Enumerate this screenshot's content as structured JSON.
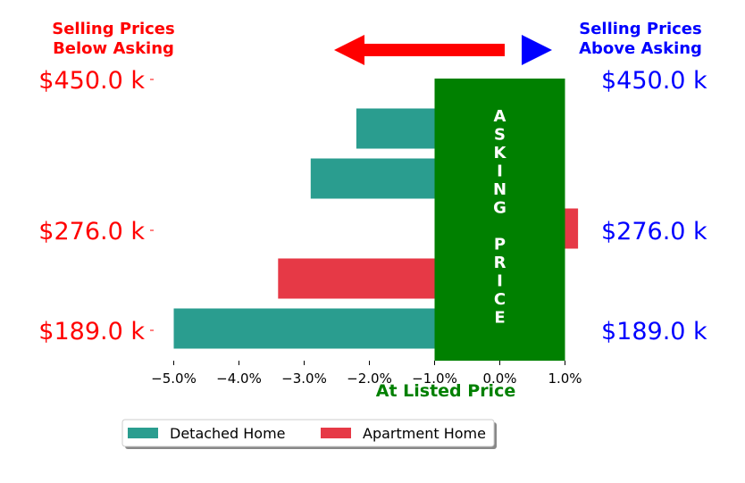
{
  "chart_data": {
    "type": "bar",
    "orientation": "horizontal",
    "xlabel": "At Listed Price",
    "xlim": [
      -5.3,
      1.0
    ],
    "xticks": [
      -5,
      -4,
      -3,
      -2,
      -1,
      0,
      1
    ],
    "xtick_labels": [
      "−5.0%",
      "−4.0%",
      "−3.0%",
      "−2.0%",
      "−1.0%",
      "0.0%",
      "1.0%"
    ],
    "left_header": [
      "Selling Prices",
      "Below Asking"
    ],
    "right_header": [
      "Selling Prices",
      "Above Asking"
    ],
    "left_price_labels": [
      "$450.0 k",
      "$276.0 k",
      "$189.0 k"
    ],
    "right_price_labels": [
      "$450.0 k",
      "$276.0 k",
      "$189.0 k"
    ],
    "band_text": "A S K I N G   P R I C E",
    "band_range": [
      -1.0,
      1.0
    ],
    "bars": [
      {
        "value": -2.2,
        "series": "Detached Home"
      },
      {
        "value": -2.9,
        "series": "Detached Home"
      },
      {
        "value": 1.2,
        "series": "Apartment Home"
      },
      {
        "value": -3.4,
        "series": "Apartment Home"
      },
      {
        "value": -5.0,
        "series": "Detached Home"
      }
    ],
    "legend": [
      {
        "name": "Detached Home",
        "color": "#2a9d8f"
      },
      {
        "name": "Apartment Home",
        "color": "#e63946"
      }
    ],
    "legend_position": "bottom",
    "colors": {
      "detached": "#2a9d8f",
      "apartment": "#e63946",
      "band": "#008000",
      "left_text": "#ff0000",
      "right_text": "#0000ff",
      "left_arrow": "#ff0000",
      "right_arrow": "#0000ff"
    }
  }
}
